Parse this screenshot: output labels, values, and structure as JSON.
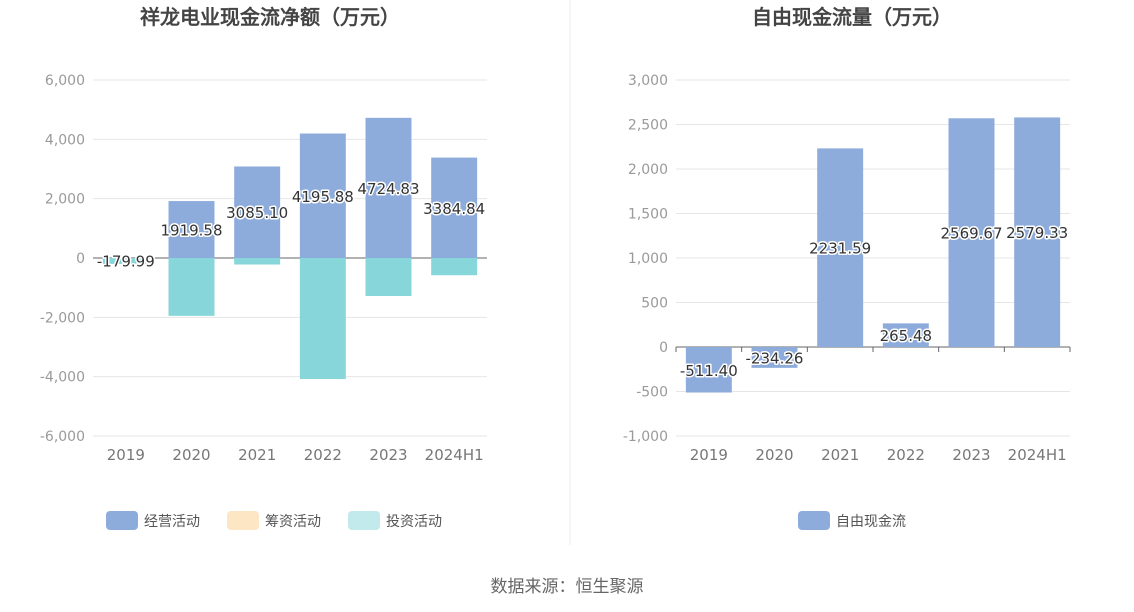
{
  "source_label": "数据来源：恒生聚源",
  "colors": {
    "operating": "#8eacdb",
    "financing": "#fde6c4",
    "investing": "#87d6d9",
    "investing_legend": "#c2e9ec",
    "free_cash_flow": "#8eacdb",
    "grid": "#e6e6e6",
    "axis": "#666666"
  },
  "chart_data": [
    {
      "type": "bar",
      "title": "祥龙电业现金流净额（万元）",
      "categories": [
        "2019",
        "2020",
        "2021",
        "2022",
        "2023",
        "2024H1"
      ],
      "ylim": [
        -6000,
        6000
      ],
      "yticks": [
        6000,
        4000,
        2000,
        0,
        -2000,
        -4000,
        -6000
      ],
      "ytick_labels": [
        "6,000",
        "4,000",
        "2,000",
        "0",
        "-2,000",
        "-4,000",
        "-6,000"
      ],
      "grid": true,
      "legend_position": "bottom",
      "series": [
        {
          "name": "经营活动",
          "values": [
            -179.99,
            1919.58,
            3085.1,
            4195.88,
            4724.83,
            3384.84
          ]
        },
        {
          "name": "筹资活动",
          "values": [
            0,
            0,
            0,
            0,
            0,
            0
          ]
        },
        {
          "name": "投资活动",
          "values": [
            -200,
            -1950,
            -220,
            -4080,
            -1280,
            -580
          ]
        }
      ],
      "data_labels": [
        "-179.99",
        "1919.58",
        "3085.10",
        "4195.88",
        "4724.83",
        "3384.84"
      ]
    },
    {
      "type": "bar",
      "title": "自由现金流量（万元）",
      "categories": [
        "2019",
        "2020",
        "2021",
        "2022",
        "2023",
        "2024H1"
      ],
      "ylim": [
        -1000,
        3000
      ],
      "yticks": [
        3000,
        2500,
        2000,
        1500,
        1000,
        500,
        0,
        -500,
        -1000
      ],
      "ytick_labels": [
        "3,000",
        "2,500",
        "2,000",
        "1,500",
        "1,000",
        "500",
        "0",
        "-500",
        "-1,000"
      ],
      "grid": true,
      "legend_position": "bottom",
      "series": [
        {
          "name": "自由现金流",
          "values": [
            -511.4,
            -234.26,
            2231.59,
            265.48,
            2569.67,
            2579.33
          ]
        }
      ],
      "data_labels": [
        "-511.40",
        "-234.26",
        "2231.59",
        "265.48",
        "2569.67",
        "2579.33"
      ]
    }
  ]
}
